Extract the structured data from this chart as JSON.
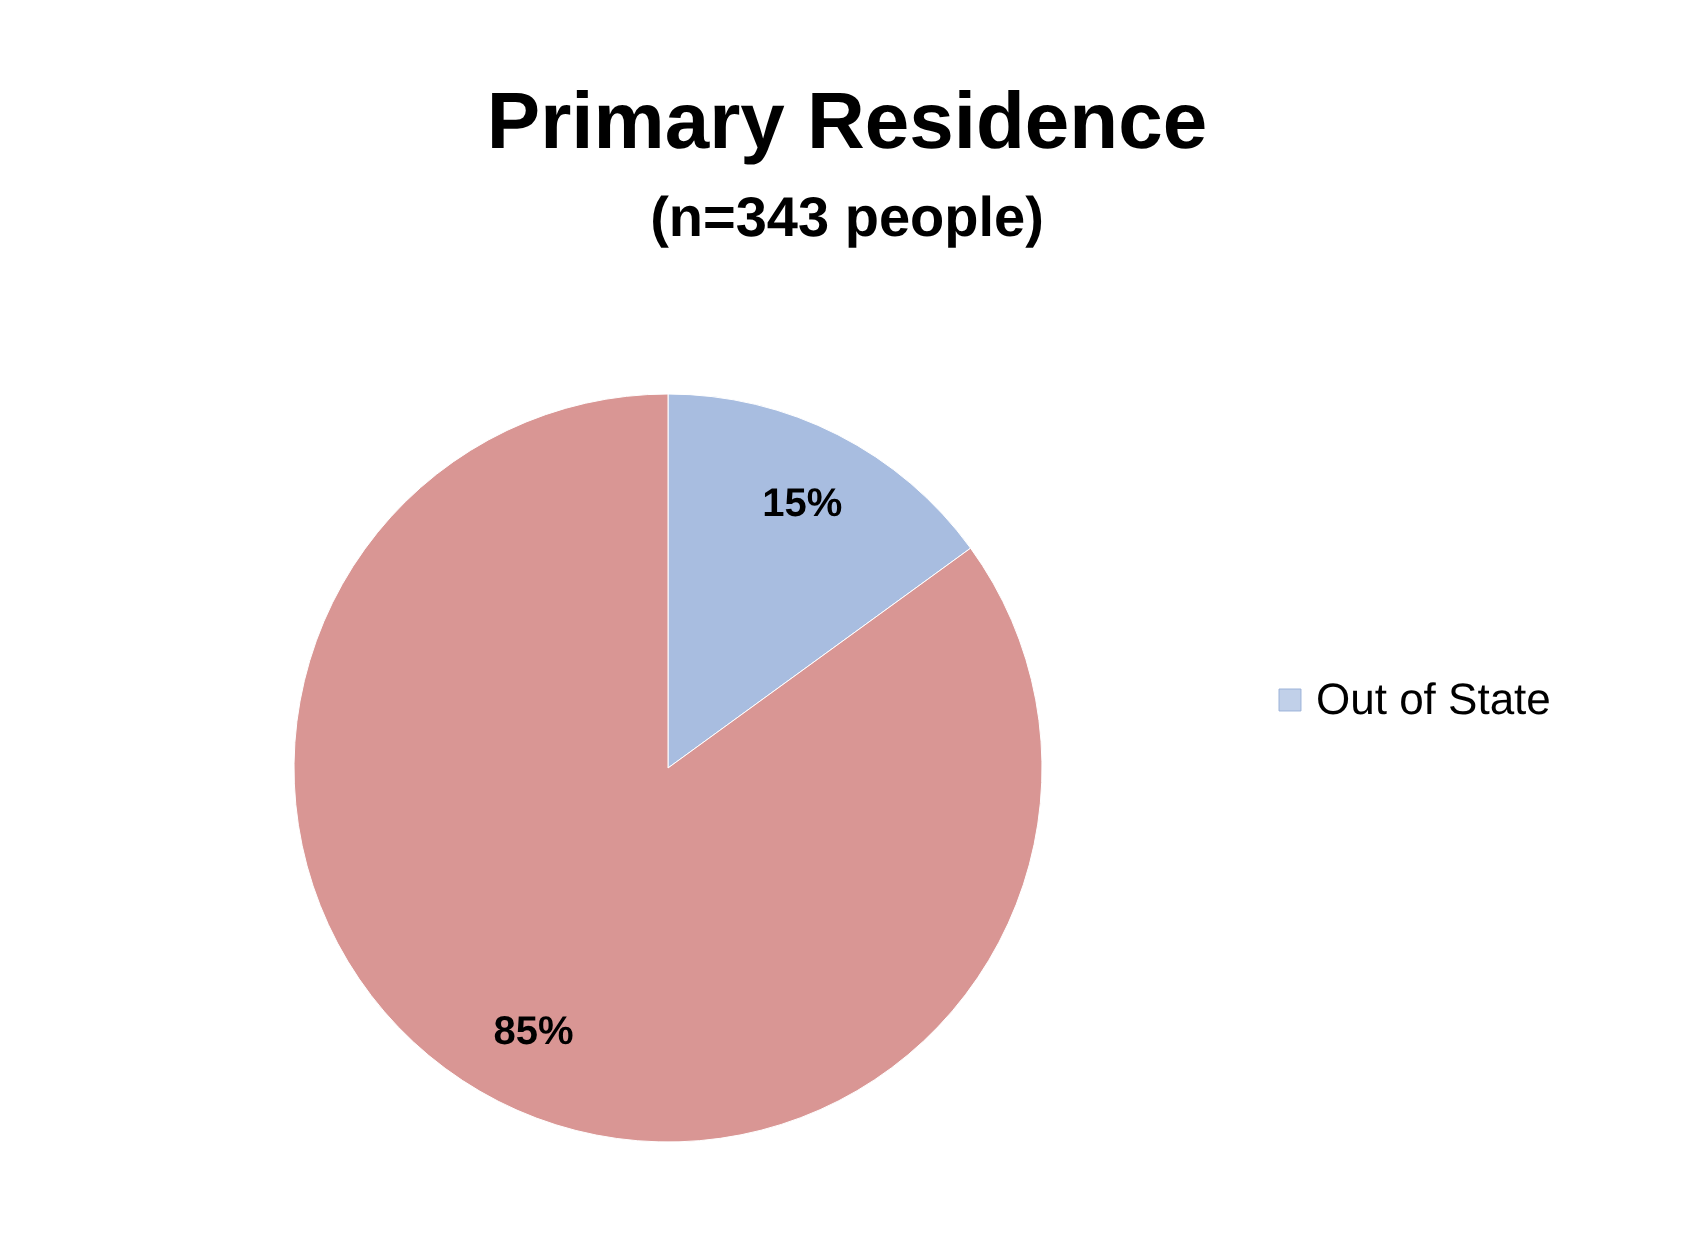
{
  "chart_data": {
    "type": "pie",
    "title": "Primary Residence",
    "subtitle": "(n=343 people)",
    "categories": [
      "Out of State",
      null
    ],
    "values": [
      15,
      85
    ],
    "colors": [
      "#a8bde0",
      "#d99694"
    ],
    "value_labels": [
      "15%",
      "85%"
    ],
    "legend": "right"
  }
}
